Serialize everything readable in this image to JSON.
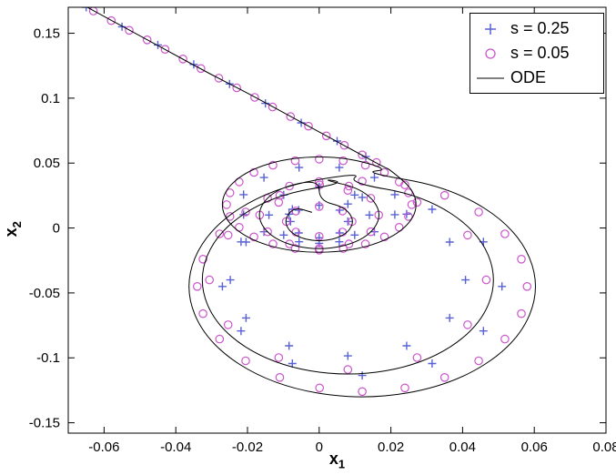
{
  "chart_data": {
    "type": "line",
    "title": "",
    "xlabel": {
      "base": "x",
      "sub": "1"
    },
    "ylabel": {
      "base": "x",
      "sub": "2"
    },
    "xlim": [
      -0.07,
      0.08
    ],
    "ylim": [
      -0.158,
      0.17
    ],
    "grid": false,
    "background": "#ffffff",
    "axis_color": "#000000",
    "legend_position": "top-right",
    "xticks": {
      "values": [
        -0.06,
        -0.04,
        -0.02,
        0,
        0.02,
        0.04,
        0.06,
        0.08
      ],
      "labels": [
        "-0.06",
        "-0.04",
        "-0.02",
        "0",
        "0.02",
        "0.04",
        "0.06",
        "0.08"
      ]
    },
    "yticks": {
      "values": [
        -0.15,
        -0.1,
        -0.05,
        0,
        0.05,
        0.1,
        0.15
      ],
      "labels": [
        "-0.15",
        "-0.1",
        "-0.05",
        "0",
        "0.05",
        "0.1",
        "0.15"
      ]
    },
    "series": [
      {
        "name": "s = 0.25",
        "marker": "plus",
        "line": false,
        "color": "#5861d6",
        "points": [
          [
            -0.065,
            0.17
          ],
          [
            -0.055,
            0.155
          ],
          [
            -0.045,
            0.141
          ],
          [
            -0.035,
            0.126
          ],
          [
            -0.025,
            0.111
          ],
          [
            -0.015,
            0.096
          ],
          [
            -0.005,
            0.081
          ],
          [
            0.005,
            0.067
          ],
          [
            0.013,
            0.055
          ],
          [
            0.0154,
            0.0389
          ],
          [
            0.0211,
            0.0257
          ],
          [
            0.0211,
            0.0103
          ],
          [
            0.0154,
            -0.0029
          ],
          [
            0.0056,
            -0.0106
          ],
          [
            -0.0056,
            -0.0106
          ],
          [
            -0.0154,
            -0.0029
          ],
          [
            -0.0211,
            0.0103
          ],
          [
            -0.0211,
            0.0257
          ],
          [
            -0.0154,
            0.0389
          ],
          [
            -0.0056,
            0.0466
          ],
          [
            0.0056,
            0.0466
          ],
          [
            0.012,
            0.0236
          ],
          [
            0.0315,
            0.0144
          ],
          [
            0.0458,
            -0.0107
          ],
          [
            0.051,
            -0.045
          ],
          [
            0.0458,
            -0.0793
          ],
          [
            0.0315,
            -0.1044
          ],
          [
            0.012,
            -0.1136
          ],
          [
            -0.0075,
            -0.1044
          ],
          [
            -0.0218,
            -0.0793
          ],
          [
            -0.027,
            -0.045
          ],
          [
            -0.0218,
            -0.0107
          ],
          [
            -0.0075,
            0.0144
          ],
          [
            0.008,
            0.0185
          ],
          [
            0.0244,
            0.0107
          ],
          [
            0.0364,
            -0.0108
          ],
          [
            0.0408,
            -0.04
          ],
          [
            0.0364,
            -0.0693
          ],
          [
            0.0244,
            -0.0907
          ],
          [
            0.008,
            -0.0985
          ],
          [
            -0.0084,
            -0.0907
          ],
          [
            -0.0204,
            -0.0693
          ],
          [
            -0.0248,
            -0.04
          ],
          [
            -0.0204,
            -0.0108
          ],
          [
            -0.0084,
            0.0107
          ],
          [
            0,
            0.0318
          ],
          [
            0.0099,
            0.0254
          ],
          [
            0.014,
            0.01
          ],
          [
            0.0099,
            -0.0054
          ],
          [
            0,
            -0.0118
          ],
          [
            -0.0099,
            -0.0054
          ],
          [
            -0.014,
            0.01
          ],
          [
            -0.0099,
            0.0254
          ],
          [
            0,
            0.0175
          ],
          [
            0.0057,
            0.0138
          ],
          [
            0.008,
            0.005
          ],
          [
            0.0057,
            -0.0038
          ],
          [
            0,
            -0.0075
          ],
          [
            -0.0057,
            -0.0038
          ],
          [
            -0.008,
            0.005
          ],
          [
            -0.0057,
            0.0138
          ]
        ]
      },
      {
        "name": "s = 0.05",
        "marker": "circle",
        "line": false,
        "color": "#cc55cc",
        "points": [
          [
            -0.068,
            0.1745
          ],
          [
            -0.063,
            0.1671
          ],
          [
            -0.058,
            0.1597
          ],
          [
            -0.053,
            0.1523
          ],
          [
            -0.048,
            0.1449
          ],
          [
            -0.043,
            0.1376
          ],
          [
            -0.038,
            0.1302
          ],
          [
            -0.033,
            0.1228
          ],
          [
            -0.028,
            0.1154
          ],
          [
            -0.023,
            0.108
          ],
          [
            -0.018,
            0.1006
          ],
          [
            -0.013,
            0.0932
          ],
          [
            -0.008,
            0.0858
          ],
          [
            -0.003,
            0.0784
          ],
          [
            0.002,
            0.071
          ],
          [
            0.007,
            0.0637
          ],
          [
            0.012,
            0.0563
          ],
          [
            0.016,
            0.0504
          ],
          [
            0.0182,
            0.0428
          ],
          [
            0.0223,
            0.0355
          ],
          [
            0.0249,
            0.0271
          ],
          [
            0.0258,
            0.018
          ],
          [
            0.0249,
            0.0089
          ],
          [
            0.0223,
            0.0005
          ],
          [
            0.0182,
            -0.0068
          ],
          [
            0.0129,
            -0.0123
          ],
          [
            0.0067,
            -0.0158
          ],
          [
            0,
            -0.017
          ],
          [
            -0.0067,
            -0.0158
          ],
          [
            -0.0129,
            -0.0123
          ],
          [
            -0.0182,
            -0.0068
          ],
          [
            -0.0223,
            0.0005
          ],
          [
            -0.0249,
            0.0089
          ],
          [
            -0.0258,
            0.018
          ],
          [
            -0.0249,
            0.0271
          ],
          [
            -0.0223,
            0.0355
          ],
          [
            -0.0182,
            0.0428
          ],
          [
            -0.0129,
            0.0483
          ],
          [
            -0.0067,
            0.0518
          ],
          [
            0,
            0.053
          ],
          [
            0.0067,
            0.0518
          ],
          [
            0.0129,
            0.0483
          ],
          [
            0.012,
            0.036
          ],
          [
            0.0239,
            0.0332
          ],
          [
            0.035,
            0.0251
          ],
          [
            0.0445,
            0.0123
          ],
          [
            0.0518,
            -0.0045
          ],
          [
            0.0564,
            -0.024
          ],
          [
            0.058,
            -0.045
          ],
          [
            0.0564,
            -0.066
          ],
          [
            0.0518,
            -0.0855
          ],
          [
            0.0445,
            -0.1023
          ],
          [
            0.035,
            -0.1151
          ],
          [
            0.0239,
            -0.1232
          ],
          [
            0.012,
            -0.126
          ],
          [
            0.0001,
            -0.1232
          ],
          [
            -0.011,
            -0.1151
          ],
          [
            -0.0205,
            -0.1023
          ],
          [
            -0.0278,
            -0.0855
          ],
          [
            -0.0324,
            -0.066
          ],
          [
            -0.034,
            -0.045
          ],
          [
            -0.0324,
            -0.024
          ],
          [
            -0.0278,
            -0.0045
          ],
          [
            -0.0205,
            0.0123
          ],
          [
            -0.011,
            0.0251
          ],
          [
            0.0001,
            0.0332
          ],
          [
            0.008,
            0.029
          ],
          [
            0.0273,
            0.0198
          ],
          [
            0.0414,
            -0.0055
          ],
          [
            0.0466,
            -0.04
          ],
          [
            0.0414,
            -0.0745
          ],
          [
            0.0273,
            -0.0998
          ],
          [
            0.008,
            -0.109
          ],
          [
            -0.0113,
            -0.0998
          ],
          [
            -0.0254,
            -0.0745
          ],
          [
            -0.0306,
            -0.04
          ],
          [
            -0.0254,
            -0.0055
          ],
          [
            -0.0113,
            0.0198
          ],
          [
            0,
            0.0358
          ],
          [
            0.0083,
            0.0323
          ],
          [
            0.0144,
            0.0229
          ],
          [
            0.0166,
            0.01
          ],
          [
            0.0144,
            -0.0029
          ],
          [
            0.0083,
            -0.0123
          ],
          [
            0,
            -0.0158
          ],
          [
            -0.0083,
            -0.0123
          ],
          [
            -0.0144,
            -0.0029
          ],
          [
            -0.0166,
            0.01
          ],
          [
            -0.0144,
            0.0229
          ],
          [
            -0.0083,
            0.0323
          ],
          [
            0,
            0.0165
          ],
          [
            0.0065,
            0.0131
          ],
          [
            0.0092,
            0.005
          ],
          [
            0.0065,
            -0.0031
          ],
          [
            0,
            -0.0065
          ],
          [
            -0.0065,
            -0.0031
          ],
          [
            -0.0092,
            0.005
          ],
          [
            -0.0065,
            0.0131
          ]
        ]
      },
      {
        "name": "ODE",
        "marker": "none",
        "line": true,
        "color": "#000000",
        "points": [
          [
            -0.07,
            0.178
          ],
          [
            -0.06,
            0.163
          ],
          [
            -0.05,
            0.148
          ],
          [
            -0.04,
            0.133
          ],
          [
            -0.03,
            0.118
          ],
          [
            -0.02,
            0.104
          ],
          [
            -0.01,
            0.089
          ],
          [
            0,
            0.074
          ],
          [
            0.01,
            0.059
          ],
          [
            0.018,
            0.047
          ],
          [
            0.0198,
            0.0449
          ],
          [
            0.027,
            0.0278
          ],
          [
            0.027,
            0.0082
          ],
          [
            0.0198,
            -0.0089
          ],
          [
            0.0073,
            -0.0187
          ],
          [
            -0.0073,
            -0.0187
          ],
          [
            -0.0198,
            -0.0089
          ],
          [
            -0.027,
            0.0082
          ],
          [
            -0.027,
            0.0278
          ],
          [
            -0.0198,
            0.0449
          ],
          [
            -0.0073,
            0.0547
          ],
          [
            0.0073,
            0.0547
          ],
          [
            0.0198,
            0.0449
          ],
          [
            0.012,
            0.043
          ],
          [
            0.037,
            0.0312
          ],
          [
            0.0553,
            -0.001
          ],
          [
            0.062,
            -0.045
          ],
          [
            0.0553,
            -0.089
          ],
          [
            0.037,
            -0.1212
          ],
          [
            0.012,
            -0.133
          ],
          [
            -0.013,
            -0.1212
          ],
          [
            -0.0313,
            -0.089
          ],
          [
            -0.038,
            -0.045
          ],
          [
            -0.0313,
            -0.001
          ],
          [
            -0.013,
            0.0312
          ],
          [
            0.012,
            0.043
          ],
          [
            0.008,
            0.035
          ],
          [
            0.029,
            0.025
          ],
          [
            0.0444,
            -0.0025
          ],
          [
            0.05,
            -0.04
          ],
          [
            0.0444,
            -0.0775
          ],
          [
            0.029,
            -0.105
          ],
          [
            0.008,
            -0.115
          ],
          [
            -0.013,
            -0.105
          ],
          [
            -0.0284,
            -0.0775
          ],
          [
            -0.034,
            -0.04
          ],
          [
            -0.0284,
            -0.0025
          ],
          [
            -0.013,
            0.025
          ],
          [
            0.008,
            0.035
          ],
          [
            0,
            0.038
          ],
          [
            0.0127,
            0.0298
          ],
          [
            0.018,
            0.01
          ],
          [
            0.0127,
            -0.0098
          ],
          [
            0,
            -0.018
          ],
          [
            -0.0127,
            -0.0098
          ],
          [
            -0.018,
            0.01
          ],
          [
            -0.0127,
            0.0298
          ],
          [
            0,
            0.038
          ],
          [
            0,
            0.021
          ],
          [
            0.0071,
            0.0163
          ],
          [
            0.01,
            0.005
          ],
          [
            0.0071,
            -0.0063
          ],
          [
            0,
            -0.011
          ],
          [
            -0.0071,
            -0.0063
          ],
          [
            -0.01,
            0.005
          ],
          [
            -0.0071,
            0.0163
          ],
          [
            -0.002,
            0.012
          ]
        ]
      }
    ]
  }
}
